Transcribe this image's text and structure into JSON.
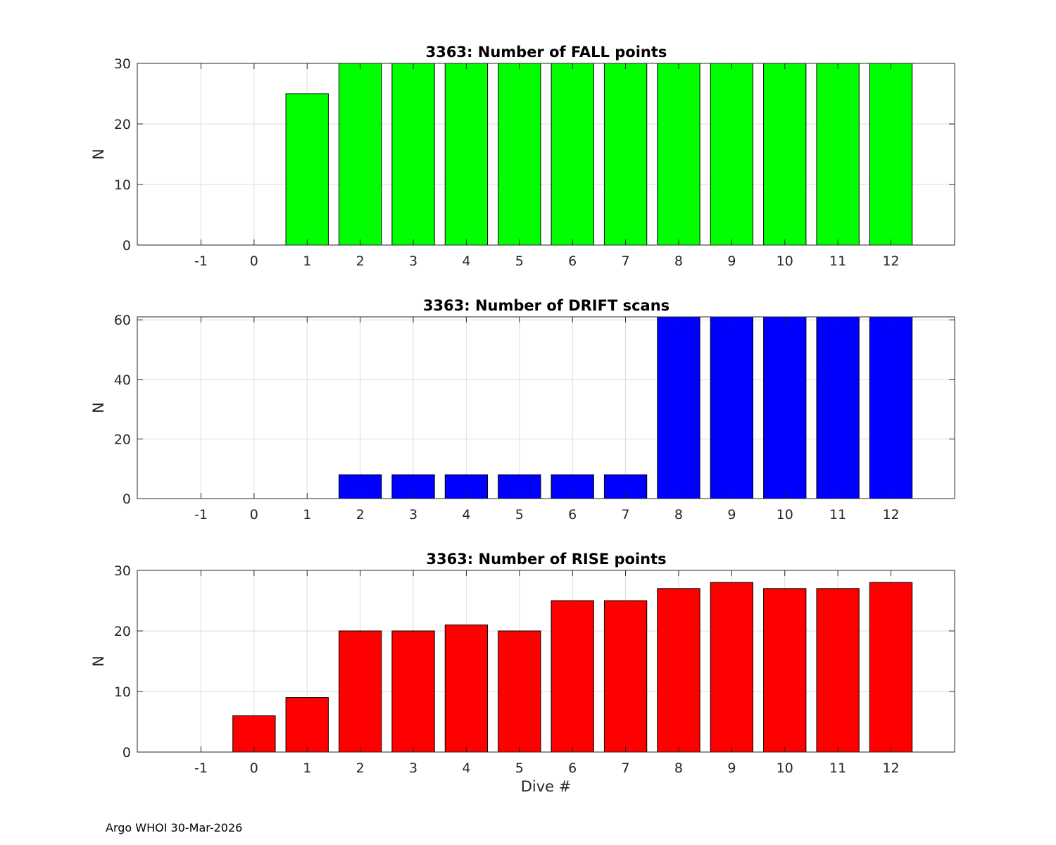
{
  "chart_data": [
    {
      "type": "bar",
      "title": "3363: Number of FALL points",
      "xlabel": "",
      "ylabel": "N",
      "categories": [
        -1,
        0,
        1,
        2,
        3,
        4,
        5,
        6,
        7,
        8,
        9,
        10,
        11,
        12
      ],
      "values": [
        0,
        0,
        25,
        30,
        30,
        30,
        30,
        30,
        30,
        30,
        30,
        30,
        30,
        30
      ],
      "xlim": [
        -2.2,
        13.2
      ],
      "ylim": [
        0,
        30
      ],
      "yticks": [
        0,
        10,
        20,
        30
      ],
      "color": "#00ff00",
      "grid": true
    },
    {
      "type": "bar",
      "title": "3363: Number of DRIFT scans",
      "xlabel": "",
      "ylabel": "N",
      "categories": [
        -1,
        0,
        1,
        2,
        3,
        4,
        5,
        6,
        7,
        8,
        9,
        10,
        11,
        12
      ],
      "values": [
        0,
        0,
        0,
        8,
        8,
        8,
        8,
        8,
        8,
        61,
        61,
        61,
        61,
        61
      ],
      "xlim": [
        -2.2,
        13.2
      ],
      "ylim": [
        0,
        61
      ],
      "yticks": [
        0,
        20,
        40,
        60
      ],
      "color": "#0000ff",
      "grid": true
    },
    {
      "type": "bar",
      "title": "3363: Number of RISE points",
      "xlabel": "Dive #",
      "ylabel": "N",
      "categories": [
        -1,
        0,
        1,
        2,
        3,
        4,
        5,
        6,
        7,
        8,
        9,
        10,
        11,
        12
      ],
      "values": [
        0,
        6,
        9,
        20,
        20,
        21,
        20,
        25,
        25,
        27,
        28,
        27,
        27,
        28
      ],
      "xlim": [
        -2.2,
        13.2
      ],
      "ylim": [
        0,
        30
      ],
      "yticks": [
        0,
        10,
        20,
        30
      ],
      "color": "#ff0000",
      "grid": true
    }
  ],
  "footer": "Argo WHOI 30-Mar-2026"
}
